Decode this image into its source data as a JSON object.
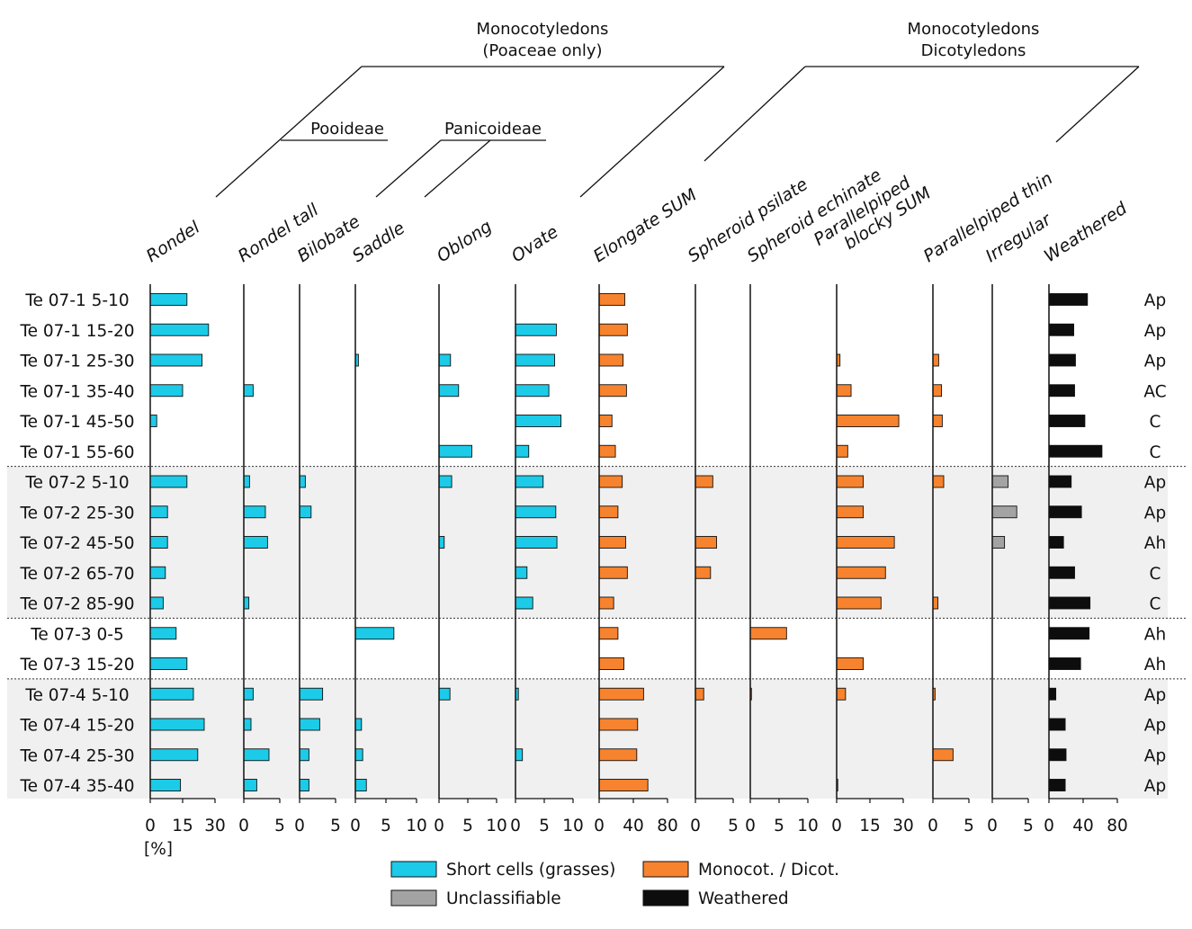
{
  "chart_data": {
    "type": "bar",
    "orientation": "horizontal",
    "x_unit": "[%]",
    "groups": {
      "monocot_poaceae": [
        "Monocotyledons",
        "(Poaceae only)"
      ],
      "monocot_dicot": [
        "Monocotyledons",
        "Dicotyledons"
      ],
      "pooideae": "Pooideae",
      "panicoideae": "Panicoideae"
    },
    "samples": [
      {
        "label": "Te 07-1 5-10",
        "horizon": "Ap",
        "section": 1
      },
      {
        "label": "Te 07-1 15-20",
        "horizon": "Ap",
        "section": 1
      },
      {
        "label": "Te 07-1 25-30",
        "horizon": "Ap",
        "section": 1
      },
      {
        "label": "Te 07-1 35-40",
        "horizon": "AC",
        "section": 1
      },
      {
        "label": "Te 07-1 45-50",
        "horizon": "C",
        "section": 1
      },
      {
        "label": "Te 07-1 55-60",
        "horizon": "C",
        "section": 1
      },
      {
        "label": "Te 07-2 5-10",
        "horizon": "Ap",
        "section": 2
      },
      {
        "label": "Te 07-2 25-30",
        "horizon": "Ap",
        "section": 2
      },
      {
        "label": "Te 07-2 45-50",
        "horizon": "Ah",
        "section": 2
      },
      {
        "label": "Te 07-2 65-70",
        "horizon": "C",
        "section": 2
      },
      {
        "label": "Te 07-2 85-90",
        "horizon": "C",
        "section": 2
      },
      {
        "label": "Te 07-3 0-5",
        "horizon": "Ah",
        "section": 3
      },
      {
        "label": "Te 07-3 15-20",
        "horizon": "Ah",
        "section": 3
      },
      {
        "label": "Te 07-4 5-10",
        "horizon": "Ap",
        "section": 4
      },
      {
        "label": "Te 07-4 15-20",
        "horizon": "Ap",
        "section": 4
      },
      {
        "label": "Te 07-4 25-30",
        "horizon": "Ap",
        "section": 4
      },
      {
        "label": "Te 07-4 35-40",
        "horizon": "Ap",
        "section": 4
      }
    ],
    "columns": [
      {
        "name": "Rondel",
        "ticks": [
          "0",
          "15",
          "30"
        ],
        "max": 30,
        "category": "short",
        "values": [
          17,
          27,
          24,
          15,
          3,
          0,
          17,
          8,
          8,
          7,
          6,
          12,
          17,
          20,
          25,
          22,
          14
        ]
      },
      {
        "name": "Rondel tall",
        "ticks": [
          "0",
          "5"
        ],
        "max": 5,
        "category": "short",
        "values": [
          0,
          0,
          0,
          1.3,
          0,
          0,
          0.8,
          3,
          3.3,
          0,
          0.7,
          0,
          0,
          1.3,
          1,
          3.5,
          1.8
        ]
      },
      {
        "name": "Bilobate",
        "ticks": [
          "0",
          "5"
        ],
        "max": 5,
        "category": "short",
        "values": [
          0,
          0,
          0,
          0,
          0,
          0,
          0.8,
          1.6,
          0,
          0,
          0,
          0,
          0,
          3.2,
          2.8,
          1.3,
          1.3
        ]
      },
      {
        "name": "Saddle",
        "ticks": [
          "0",
          "5",
          "10"
        ],
        "max": 10,
        "category": "short",
        "values": [
          0,
          0,
          0.5,
          0,
          0,
          0,
          0,
          0,
          0,
          0,
          0,
          6.3,
          0,
          0,
          1,
          1.2,
          1.8
        ]
      },
      {
        "name": "Oblong",
        "ticks": [
          "0",
          "5",
          "10"
        ],
        "max": 10,
        "category": "short",
        "values": [
          0,
          0,
          2,
          3.4,
          0,
          5.7,
          2.2,
          0,
          0.9,
          0,
          0,
          0,
          0,
          1.9,
          0,
          0,
          0
        ]
      },
      {
        "name": "Ovate",
        "ticks": [
          "0",
          "5",
          "10"
        ],
        "max": 10,
        "category": "short",
        "values": [
          0,
          7.1,
          6.8,
          5.8,
          7.9,
          2.3,
          4.8,
          7,
          7.2,
          2,
          3,
          0,
          0,
          0.5,
          0,
          1.2,
          0
        ]
      },
      {
        "name": "Elongate SUM",
        "ticks": [
          "0",
          "40",
          "80"
        ],
        "max": 80,
        "category": "monocot",
        "values": [
          30,
          33,
          28,
          32,
          15,
          19,
          27,
          22,
          31,
          33,
          17,
          22,
          29,
          52,
          45,
          44,
          57
        ]
      },
      {
        "name": "Spheroid psilate",
        "ticks": [
          "0",
          "5"
        ],
        "max": 5,
        "category": "monocot",
        "values": [
          0,
          0,
          0,
          0,
          0,
          0,
          2.3,
          0,
          2.8,
          2,
          0,
          0,
          0,
          1.1,
          0,
          0,
          0
        ]
      },
      {
        "name": "Spheroid echinate",
        "ticks": [
          "0",
          "5",
          "10"
        ],
        "max": 10,
        "category": "monocot",
        "values": [
          0,
          0,
          0,
          0,
          0,
          0,
          0,
          0,
          0,
          0,
          0,
          6.3,
          0,
          0.2,
          0,
          0,
          0
        ]
      },
      {
        "name": "Parallelpiped blocky SUM",
        "ticks": [
          "0",
          "15",
          "30"
        ],
        "max": 30,
        "category": "monocot",
        "values": [
          0,
          0,
          1.5,
          6.5,
          28,
          5,
          12,
          12,
          26,
          22,
          20,
          0,
          12,
          4,
          0,
          0,
          0.5
        ]
      },
      {
        "name": "Parallelpiped thin",
        "ticks": [
          "0",
          "5"
        ],
        "max": 5,
        "category": "monocot",
        "values": [
          0,
          0,
          0.8,
          1.2,
          1.3,
          0,
          1.5,
          0,
          0,
          0,
          0.7,
          0,
          0,
          0.3,
          0,
          2.8,
          0
        ]
      },
      {
        "name": "Irregular",
        "ticks": [
          "0",
          "5"
        ],
        "max": 5,
        "category": "unclass",
        "values": [
          0,
          0,
          0,
          0,
          0,
          0,
          2.2,
          3.4,
          1.7,
          0,
          0,
          0,
          0,
          0,
          0,
          0,
          0
        ]
      },
      {
        "name": "Weathered",
        "ticks": [
          "0",
          "40",
          "80"
        ],
        "max": 80,
        "category": "weathered",
        "values": [
          45,
          29,
          31,
          30,
          42,
          62,
          26,
          38,
          17,
          30,
          48,
          47,
          37,
          8,
          19,
          20,
          19
        ]
      }
    ],
    "legend": [
      {
        "label": "Short cells (grasses)",
        "color": "#1ccbe8"
      },
      {
        "label": "Monocot. / Dicot.",
        "color": "#f7832e"
      },
      {
        "label": "Unclassifiable",
        "color": "#a3a3a3"
      },
      {
        "label": "Weathered",
        "color": "#0d0d0d"
      }
    ],
    "colors": {
      "short": "#1ccbe8",
      "monocot": "#f7832e",
      "unclass": "#a3a3a3",
      "weathered": "#0d0d0d",
      "shade": "#eff0ef"
    }
  }
}
